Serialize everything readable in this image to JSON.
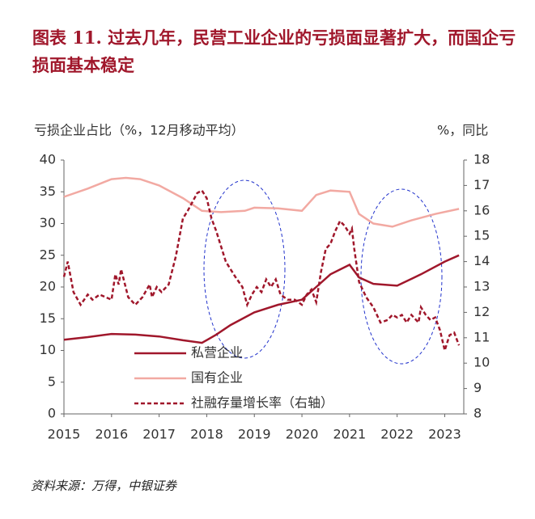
{
  "chart_data": {
    "type": "line",
    "title": "图表 11. 过去几年，民营工业企业的亏损面显著扩大，而国企亏损面基本稳定",
    "y_label": "亏损企业占比（%，12月移动平均）",
    "y2_label": "%，同比",
    "source": "资料来源：万得，中银证券",
    "xlim": [
      2015,
      2023.4
    ],
    "xticks": [
      2015,
      2016,
      2017,
      2018,
      2019,
      2020,
      2021,
      2022,
      2023
    ],
    "ylim": [
      0,
      40
    ],
    "yticks": [
      0,
      5,
      10,
      15,
      20,
      25,
      30,
      35,
      40
    ],
    "y2lim": [
      8,
      18
    ],
    "y2ticks": [
      8,
      9,
      10,
      11,
      12,
      13,
      14,
      15,
      16,
      17,
      18
    ],
    "grid": false,
    "series": [
      {
        "name": "私营企业",
        "color": "#a0172b",
        "dash": false,
        "x": [
          2015,
          2015.5,
          2016,
          2016.5,
          2017,
          2017.5,
          2017.9,
          2018.2,
          2018.5,
          2019,
          2019.5,
          2020,
          2020.3,
          2020.6,
          2021,
          2021.2,
          2021.5,
          2022,
          2022.5,
          2023,
          2023.3
        ],
        "values": [
          11.7,
          12.1,
          12.6,
          12.5,
          12.2,
          11.6,
          11.2,
          12.5,
          14,
          16,
          17.2,
          18,
          20,
          22,
          23.5,
          21.5,
          20.5,
          20.2,
          22,
          24,
          25
        ]
      },
      {
        "name": "国有企业",
        "color": "#f2a9a2",
        "dash": false,
        "x": [
          2015,
          2015.5,
          2016,
          2016.3,
          2016.6,
          2017,
          2017.5,
          2017.9,
          2018.3,
          2018.8,
          2019,
          2019.5,
          2020,
          2020.3,
          2020.6,
          2021,
          2021.2,
          2021.5,
          2021.9,
          2022.3,
          2022.8,
          2023.3
        ],
        "values": [
          34.2,
          35.5,
          37,
          37.2,
          37,
          36,
          34,
          32,
          31.8,
          32,
          32.5,
          32.4,
          32,
          34.5,
          35.2,
          35,
          31.5,
          30,
          29.5,
          30.5,
          31.5,
          32.3
        ]
      },
      {
        "name": "社融存量增长率（右轴）",
        "color": "#a0172b",
        "dash": true,
        "axis": "y2",
        "x": [
          2015,
          2015.08,
          2015.2,
          2015.35,
          2015.5,
          2015.6,
          2015.75,
          2016,
          2016.08,
          2016.15,
          2016.2,
          2016.35,
          2016.5,
          2016.65,
          2016.8,
          2016.85,
          2016.95,
          2017.05,
          2017.1,
          2017.2,
          2017.35,
          2017.5,
          2017.6,
          2017.8,
          2017.9,
          2018,
          2018.1,
          2018.2,
          2018.3,
          2018.4,
          2018.5,
          2018.6,
          2018.75,
          2018.85,
          2018.95,
          2019.05,
          2019.15,
          2019.25,
          2019.35,
          2019.45,
          2019.55,
          2019.7,
          2019.85,
          2020,
          2020.1,
          2020.2,
          2020.3,
          2020.4,
          2020.5,
          2020.6,
          2020.7,
          2020.8,
          2020.9,
          2021,
          2021.05,
          2021.1,
          2021.2,
          2021.35,
          2021.5,
          2021.65,
          2021.8,
          2021.9,
          2022,
          2022.1,
          2022.2,
          2022.3,
          2022.45,
          2022.5,
          2022.6,
          2022.7,
          2022.8,
          2022.9,
          2023,
          2023.1,
          2023.2,
          2023.3
        ],
        "values": [
          13.4,
          14.0,
          12.8,
          12.3,
          12.7,
          12.5,
          12.7,
          12.5,
          13.5,
          13.1,
          13.7,
          12.6,
          12.3,
          12.6,
          13.1,
          12.6,
          13.0,
          12.8,
          12.9,
          13.1,
          14.2,
          15.7,
          16.0,
          16.7,
          16.8,
          16.5,
          15.7,
          15.2,
          14.6,
          14.0,
          13.7,
          13.4,
          13.0,
          12.3,
          12.7,
          13.0,
          12.8,
          13.3,
          13.0,
          13.3,
          12.7,
          12.5,
          12.5,
          12.3,
          12.7,
          12.9,
          12.4,
          13.6,
          14.5,
          14.7,
          15.2,
          15.6,
          15.4,
          15.1,
          15.3,
          14.5,
          13.2,
          12.6,
          12.2,
          11.6,
          11.7,
          11.9,
          11.8,
          11.9,
          11.6,
          11.9,
          11.6,
          12.2,
          11.9,
          11.7,
          11.8,
          11.3,
          10.5,
          11.1,
          11.2,
          10.7
        ]
      }
    ]
  }
}
